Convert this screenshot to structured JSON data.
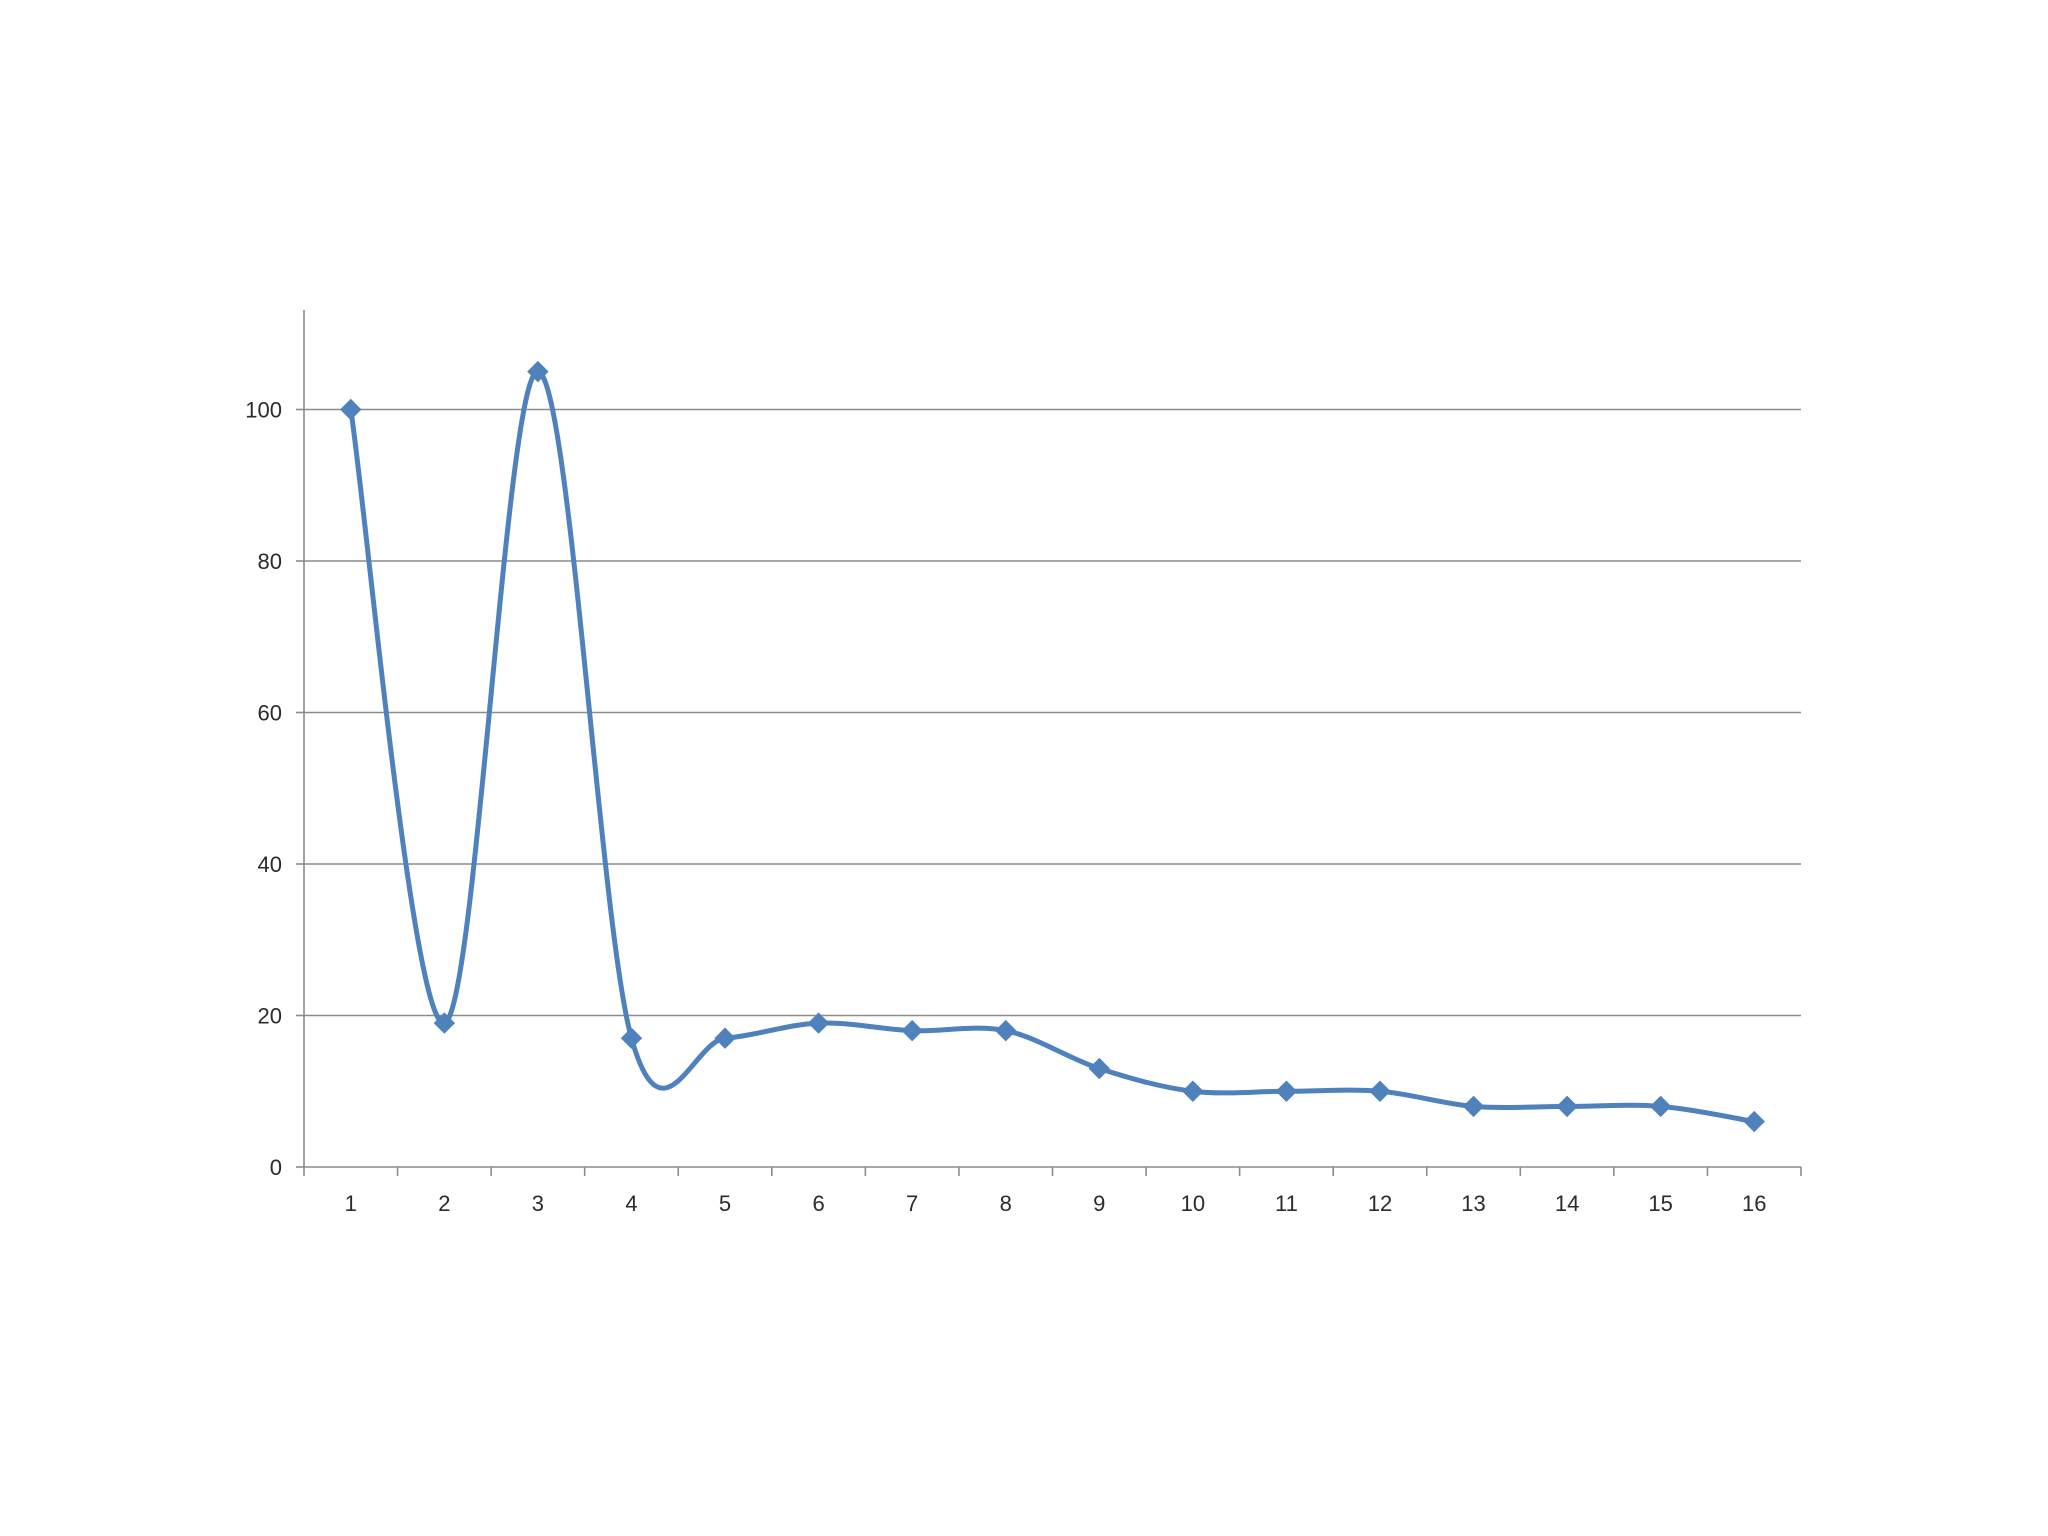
{
  "chart_data": {
    "type": "line",
    "smooth": true,
    "marker": "diamond",
    "title": "",
    "xlabel": "",
    "ylabel": "",
    "categories": [
      "1",
      "2",
      "3",
      "4",
      "5",
      "6",
      "7",
      "8",
      "9",
      "10",
      "11",
      "12",
      "13",
      "14",
      "15",
      "16"
    ],
    "series": [
      {
        "values": [
          100,
          19,
          105,
          17,
          17,
          19,
          18,
          18,
          13,
          10,
          10,
          10,
          8,
          8,
          8,
          6
        ],
        "color": "#4f81bd"
      }
    ],
    "yticks": [
      0,
      20,
      40,
      60,
      80,
      100
    ],
    "ylim": [
      0,
      110
    ],
    "grid": "horizontal",
    "legend": "none"
  }
}
